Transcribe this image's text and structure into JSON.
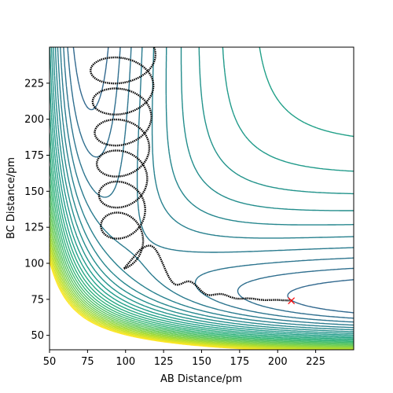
{
  "chart_data": {
    "type": "contour",
    "title": "",
    "xlabel": "AB Distance/pm",
    "ylabel": "BC Distance/pm",
    "xlim": [
      50,
      250
    ],
    "ylim": [
      40,
      250
    ],
    "xticks": [
      50,
      75,
      100,
      125,
      150,
      175,
      200,
      225
    ],
    "yticks": [
      50,
      75,
      100,
      125,
      150,
      175,
      200,
      225
    ],
    "grid": false,
    "colormap": "viridis",
    "colors": {
      "trajectory": "#000000",
      "end_marker": "#ff0000",
      "frame": "#000000"
    },
    "contours": {
      "levels": 40,
      "valley_minimum_x": 74,
      "valley_minimum_y": 74
    },
    "trajectory": {
      "end_point": {
        "x": 209,
        "y": 74
      },
      "end_marker": "x-marker"
    }
  }
}
